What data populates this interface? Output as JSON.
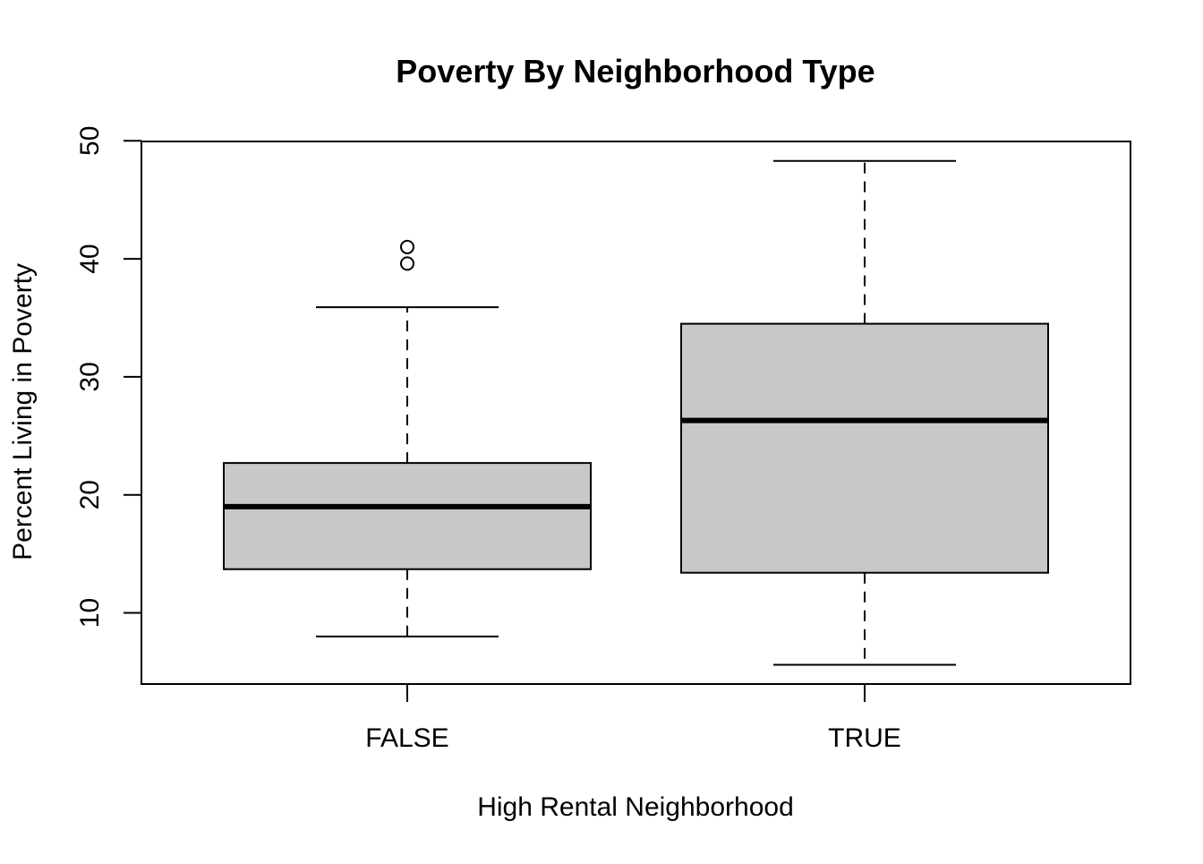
{
  "chart_data": {
    "type": "boxplot",
    "title": "Poverty By Neighborhood Type",
    "xlabel": "High Rental Neighborhood",
    "ylabel": "Percent Living in Poverty",
    "ylim": [
      4,
      50
    ],
    "yticks": [
      10,
      20,
      30,
      40,
      50
    ],
    "grid": false,
    "legend": "none",
    "box_fill": "#c8c8c8",
    "line_color": "#000000",
    "categories": [
      "FALSE",
      "TRUE"
    ],
    "boxes": [
      {
        "category": "FALSE",
        "whisker_low": 8.0,
        "q1": 13.7,
        "median": 19.0,
        "q3": 22.7,
        "whisker_high": 35.9,
        "outliers": [
          39.6,
          41.0
        ]
      },
      {
        "category": "TRUE",
        "whisker_low": 5.6,
        "q1": 13.4,
        "median": 26.3,
        "q3": 34.5,
        "whisker_high": 48.3,
        "outliers": []
      }
    ]
  }
}
